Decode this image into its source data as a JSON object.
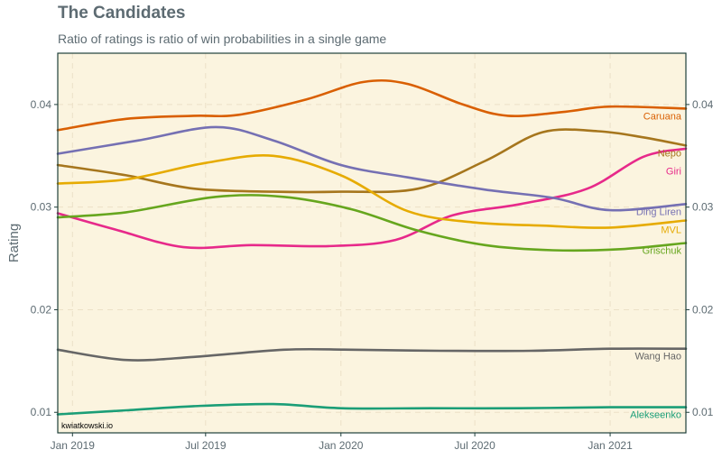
{
  "title": "The Candidates",
  "subtitle": "Ratio of ratings is ratio of win probabilities in a single game",
  "credit": "kwiatkowski.io",
  "colors": {
    "panel_bg": "#fbf4df",
    "panel_border": "#1f3f3a",
    "grid": "#ece0c7",
    "text": "#5d6b72"
  },
  "chart_data": {
    "type": "line",
    "title": "The Candidates",
    "subtitle": "Ratio of ratings is ratio of win probabilities in a single game",
    "xlabel": "",
    "ylabel": "Rating",
    "xlim": [
      "2018-12-12",
      "2021-04-14"
    ],
    "ylim": [
      0.008,
      0.045
    ],
    "grid": true,
    "secondary_y_axis": true,
    "legend": "direct labels at right end of lines",
    "x_ticks": [
      {
        "date": "2019-01-01",
        "label": "Jan 2019"
      },
      {
        "date": "2019-07-01",
        "label": "Jul 2019"
      },
      {
        "date": "2020-01-01",
        "label": "Jan 2020"
      },
      {
        "date": "2020-07-01",
        "label": "Jul 2020"
      },
      {
        "date": "2021-01-01",
        "label": "Jan 2021"
      }
    ],
    "y_ticks": [
      {
        "value": 0.01,
        "label": "0.01"
      },
      {
        "value": 0.02,
        "label": "0.02"
      },
      {
        "value": 0.03,
        "label": "0.03"
      },
      {
        "value": 0.04,
        "label": "0.04"
      }
    ],
    "series": [
      {
        "name": "Caruana",
        "color": "#d95f02",
        "x": [
          "2018-12-12",
          "2019-03-15",
          "2019-06-15",
          "2019-08-15",
          "2019-11-15",
          "2020-02-01",
          "2020-04-01",
          "2020-06-15",
          "2020-08-15",
          "2020-11-01",
          "2021-01-01",
          "2021-04-14"
        ],
        "y": [
          0.0375,
          0.0386,
          0.0389,
          0.039,
          0.0405,
          0.0422,
          0.042,
          0.04,
          0.0389,
          0.0393,
          0.0398,
          0.0396
        ]
      },
      {
        "name": "Nepo",
        "color": "#a6761d",
        "x": [
          "2018-12-12",
          "2019-03-15",
          "2019-06-15",
          "2019-10-01",
          "2020-01-01",
          "2020-04-15",
          "2020-07-15",
          "2020-10-01",
          "2020-12-15",
          "2021-02-15",
          "2021-04-14"
        ],
        "y": [
          0.0341,
          0.0331,
          0.0318,
          0.0315,
          0.0315,
          0.0318,
          0.0345,
          0.0373,
          0.0374,
          0.0368,
          0.036
        ]
      },
      {
        "name": "Giri",
        "color": "#e7298a",
        "x": [
          "2018-12-12",
          "2019-03-01",
          "2019-06-01",
          "2019-09-01",
          "2019-12-15",
          "2020-03-15",
          "2020-06-01",
          "2020-09-01",
          "2020-12-01",
          "2021-02-15",
          "2021-04-14"
        ],
        "y": [
          0.0294,
          0.0278,
          0.0261,
          0.0263,
          0.0262,
          0.0268,
          0.0292,
          0.0303,
          0.0318,
          0.0349,
          0.0357
        ]
      },
      {
        "name": "Ding Liren",
        "color": "#7570b3",
        "x": [
          "2018-12-12",
          "2019-04-01",
          "2019-07-15",
          "2019-10-01",
          "2020-01-01",
          "2020-04-01",
          "2020-07-15",
          "2020-10-15",
          "2021-01-01",
          "2021-04-14"
        ],
        "y": [
          0.0352,
          0.0365,
          0.0378,
          0.0365,
          0.0341,
          0.0329,
          0.0317,
          0.0309,
          0.0297,
          0.0303
        ]
      },
      {
        "name": "MVL",
        "color": "#e6ab02",
        "x": [
          "2018-12-12",
          "2019-03-15",
          "2019-07-01",
          "2019-10-01",
          "2020-01-01",
          "2020-04-01",
          "2020-07-01",
          "2020-10-01",
          "2021-01-01",
          "2021-04-14"
        ],
        "y": [
          0.0323,
          0.0327,
          0.0343,
          0.035,
          0.0331,
          0.0296,
          0.0285,
          0.0282,
          0.028,
          0.0287
        ]
      },
      {
        "name": "Grischuk",
        "color": "#66a61e",
        "x": [
          "2018-12-12",
          "2019-03-15",
          "2019-07-15",
          "2019-10-15",
          "2020-01-15",
          "2020-04-15",
          "2020-07-15",
          "2020-10-15",
          "2021-01-15",
          "2021-04-14"
        ],
        "y": [
          0.029,
          0.0295,
          0.031,
          0.031,
          0.0298,
          0.0277,
          0.0263,
          0.0258,
          0.0259,
          0.0265
        ]
      },
      {
        "name": "Wang Hao",
        "color": "#666666",
        "x": [
          "2018-12-12",
          "2019-03-15",
          "2019-06-15",
          "2019-10-15",
          "2020-01-15",
          "2020-05-15",
          "2020-09-15",
          "2021-01-01",
          "2021-04-14"
        ],
        "y": [
          0.0161,
          0.0151,
          0.0154,
          0.0161,
          0.0161,
          0.016,
          0.016,
          0.0162,
          0.0162
        ]
      },
      {
        "name": "Alekseenko",
        "color": "#1b9e77",
        "x": [
          "2018-12-12",
          "2019-03-15",
          "2019-06-15",
          "2019-10-01",
          "2020-01-01",
          "2020-05-01",
          "2020-09-01",
          "2021-01-01",
          "2021-04-14"
        ],
        "y": [
          0.0098,
          0.0102,
          0.0106,
          0.0108,
          0.0104,
          0.0104,
          0.0104,
          0.0105,
          0.0105
        ]
      }
    ]
  }
}
